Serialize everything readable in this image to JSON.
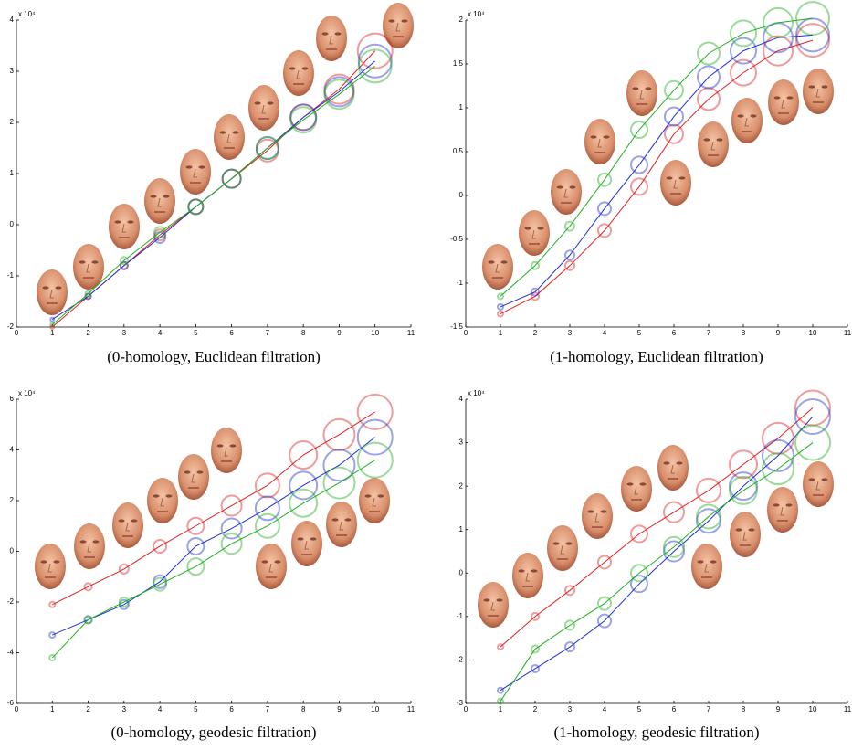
{
  "chart_data": [
    {
      "type": "line",
      "title": "(0-homology, Euclidean filtration)",
      "multiplier": "x 10⁴",
      "x": [
        1,
        2,
        3,
        4,
        5,
        6,
        7,
        8,
        9,
        10
      ],
      "xlim": [
        0,
        11
      ],
      "xticks": [
        0,
        1,
        2,
        3,
        4,
        5,
        6,
        7,
        8,
        9,
        10,
        11
      ],
      "ylim": [
        -2,
        4
      ],
      "yticks": [
        -2,
        -1,
        0,
        1,
        2,
        3,
        4
      ],
      "series": [
        {
          "color": "#e02020",
          "values": [
            -2.0,
            -1.4,
            -0.8,
            -0.2,
            0.35,
            0.9,
            1.45,
            2.1,
            2.65,
            3.4
          ],
          "sizes": [
            2,
            3,
            4,
            6,
            8,
            10,
            12,
            14,
            16,
            19
          ]
        },
        {
          "color": "#2030d0",
          "values": [
            -1.85,
            -1.4,
            -0.8,
            -0.25,
            0.35,
            0.9,
            1.5,
            2.1,
            2.6,
            3.2
          ],
          "sizes": [
            2,
            3,
            4,
            6,
            8,
            10,
            12,
            14,
            16,
            18
          ]
        },
        {
          "color": "#20b020",
          "values": [
            -1.95,
            -1.35,
            -0.7,
            -0.15,
            0.35,
            0.9,
            1.5,
            2.05,
            2.55,
            3.1
          ],
          "sizes": [
            2,
            3,
            4,
            6,
            8,
            10,
            12,
            14,
            16,
            18
          ]
        }
      ]
    },
    {
      "type": "line",
      "title": "(1-homology, Euclidean filtration)",
      "multiplier": "x 10⁴",
      "x": [
        1,
        2,
        3,
        4,
        5,
        6,
        7,
        8,
        9,
        10
      ],
      "xlim": [
        0,
        11
      ],
      "xticks": [
        0,
        1,
        2,
        3,
        4,
        5,
        6,
        7,
        8,
        9,
        10,
        11
      ],
      "ylim": [
        -1.5,
        2
      ],
      "yticks": [
        -1.5,
        -1,
        -0.5,
        0,
        0.5,
        1,
        1.5,
        2
      ],
      "series": [
        {
          "color": "#e02020",
          "values": [
            -1.35,
            -1.15,
            -0.8,
            -0.4,
            0.1,
            0.7,
            1.1,
            1.4,
            1.65,
            1.77
          ],
          "sizes": [
            3,
            4,
            5,
            7,
            9,
            10,
            12,
            14,
            16,
            18
          ]
        },
        {
          "color": "#2030d0",
          "values": [
            -1.27,
            -1.1,
            -0.68,
            -0.15,
            0.35,
            0.9,
            1.35,
            1.65,
            1.8,
            1.83
          ],
          "sizes": [
            3,
            4,
            5,
            7,
            9,
            10,
            12,
            14,
            16,
            18
          ]
        },
        {
          "color": "#20b020",
          "values": [
            -1.15,
            -0.8,
            -0.35,
            0.18,
            0.75,
            1.2,
            1.62,
            1.85,
            1.97,
            2.02
          ],
          "sizes": [
            3,
            4,
            5,
            7,
            9,
            10,
            12,
            14,
            16,
            18
          ]
        }
      ]
    },
    {
      "type": "line",
      "title": "(0-homology, geodesic filtration)",
      "multiplier": "x 10⁴",
      "x": [
        1,
        2,
        3,
        4,
        5,
        6,
        7,
        8,
        9,
        10
      ],
      "xlim": [
        0,
        11
      ],
      "xticks": [
        0,
        1,
        2,
        3,
        4,
        5,
        6,
        7,
        8,
        9,
        10,
        11
      ],
      "ylim": [
        -6,
        6
      ],
      "yticks": [
        -6,
        -4,
        -2,
        0,
        2,
        4,
        6
      ],
      "series": [
        {
          "color": "#e02020",
          "values": [
            -2.1,
            -1.4,
            -0.7,
            0.2,
            1.0,
            1.8,
            2.6,
            3.8,
            4.6,
            5.5
          ],
          "sizes": [
            3,
            4,
            5,
            7,
            9,
            11,
            13,
            15,
            17,
            19
          ]
        },
        {
          "color": "#2030d0",
          "values": [
            -3.3,
            -2.7,
            -2.1,
            -1.2,
            0.2,
            0.9,
            1.7,
            2.6,
            3.4,
            4.5
          ],
          "sizes": [
            3,
            4,
            5,
            7,
            9,
            11,
            13,
            15,
            17,
            19
          ]
        },
        {
          "color": "#20b020",
          "values": [
            -4.2,
            -2.7,
            -2.0,
            -1.3,
            -0.6,
            0.3,
            1.0,
            1.9,
            2.7,
            3.6
          ],
          "sizes": [
            3,
            4,
            5,
            7,
            9,
            11,
            13,
            15,
            17,
            19
          ]
        }
      ]
    },
    {
      "type": "line",
      "title": "(1-homology, geodesic filtration)",
      "multiplier": "x 10⁴",
      "x": [
        1,
        2,
        3,
        4,
        5,
        6,
        7,
        8,
        9,
        10
      ],
      "xlim": [
        0,
        11
      ],
      "xticks": [
        0,
        1,
        2,
        3,
        4,
        5,
        6,
        7,
        8,
        9,
        10,
        11
      ],
      "ylim": [
        -3,
        4
      ],
      "yticks": [
        -3,
        -2,
        -1,
        0,
        1,
        2,
        3,
        4
      ],
      "series": [
        {
          "color": "#e02020",
          "values": [
            -1.7,
            -1.0,
            -0.4,
            0.25,
            0.9,
            1.4,
            1.9,
            2.5,
            3.1,
            3.8
          ],
          "sizes": [
            3,
            4,
            5,
            7,
            9,
            11,
            13,
            15,
            17,
            19
          ]
        },
        {
          "color": "#2030d0",
          "values": [
            -2.7,
            -2.2,
            -1.7,
            -1.1,
            -0.25,
            0.5,
            1.2,
            2.0,
            2.7,
            3.6
          ],
          "sizes": [
            3,
            4,
            5,
            7,
            9,
            11,
            13,
            15,
            17,
            19
          ]
        },
        {
          "color": "#20b020",
          "values": [
            -2.95,
            -1.75,
            -1.2,
            -0.7,
            0.0,
            0.6,
            1.3,
            1.9,
            2.4,
            3.0
          ],
          "sizes": [
            3,
            4,
            5,
            7,
            9,
            11,
            13,
            15,
            17,
            19
          ]
        }
      ]
    }
  ]
}
